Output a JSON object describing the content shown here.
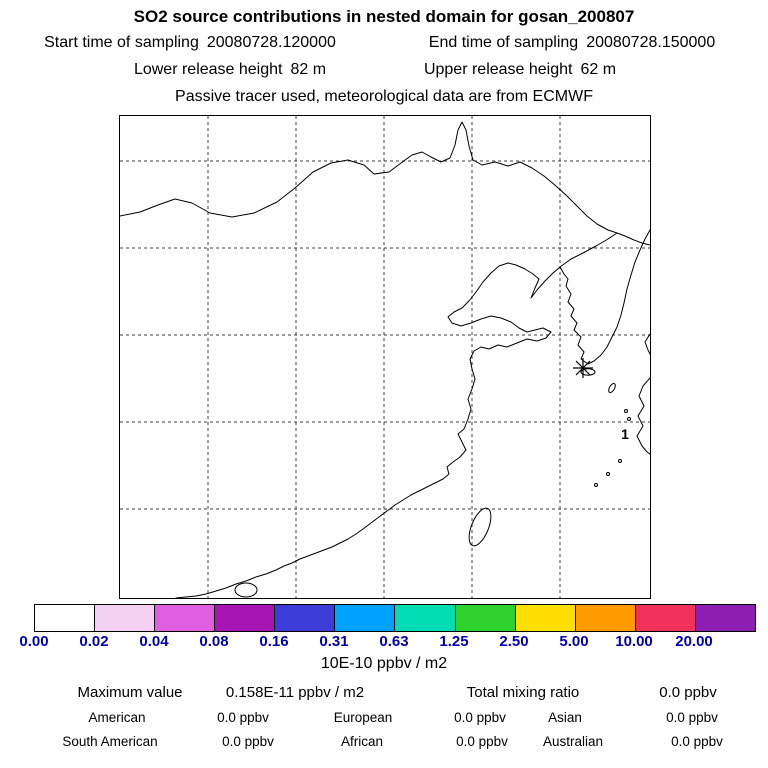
{
  "header": {
    "title": "SO2 source contributions in nested domain for gosan_200807",
    "sampling": {
      "start_label": "Start time of sampling",
      "start_value": "20080728.120000",
      "end_label": "End time of sampling",
      "end_value": "20080728.150000"
    },
    "release": {
      "lower_label": "Lower release height",
      "lower_value": "82 m",
      "upper_label": "Upper release height",
      "upper_value": "62 m"
    },
    "tracer_note": "Passive tracer used, meteorological data are from ECMWF"
  },
  "map": {
    "receptor_label": "1",
    "station_marker": "asterisk"
  },
  "colorbar": {
    "tick_labels": [
      "0.00",
      "0.02",
      "0.04",
      "0.08",
      "0.16",
      "0.31",
      "0.63",
      "1.25",
      "2.50",
      "5.00",
      "10.00",
      "20.00"
    ],
    "colors": [
      "#ffffff",
      "#f4d0f4",
      "#e05fe0",
      "#a614b4",
      "#3c3cd8",
      "#00a2ff",
      "#00dcb4",
      "#30d230",
      "#ffdf00",
      "#ff9900",
      "#f0325a",
      "#8c1eb4"
    ],
    "units_label": "10E-10 ppbv / m2"
  },
  "stats": {
    "maximum_label": "Maximum value",
    "maximum_value": "0.158E-11 ppbv / m2",
    "total_label": "Total mixing ratio",
    "total_value": "0.0 ppbv",
    "regions": [
      {
        "name": "American",
        "value": "0.0 ppbv"
      },
      {
        "name": "European",
        "value": "0.0 ppbv"
      },
      {
        "name": "Asian",
        "value": "0.0 ppbv"
      },
      {
        "name": "South American",
        "value": "0.0 ppbv"
      },
      {
        "name": "African",
        "value": "0.0 ppbv"
      },
      {
        "name": "Australian",
        "value": "0.0 ppbv"
      }
    ]
  },
  "chart_data": {
    "type": "heatmap",
    "title": "SO2 source contributions in nested domain for gosan_200807",
    "subtitle_lines": [
      "Start time of sampling 20080728.120000  End time of sampling 20080728.150000",
      "Lower release height 82 m  Upper release height 62 m",
      "Passive tracer used, meteorological data are from ECMWF"
    ],
    "map_region": "East Asia (China coast, Korean peninsula, Taiwan, Kyushu), grid of dashed lat/lon lines",
    "field_note": "No filled contours visible; all field values fall below the lowest colorbar level",
    "colorbar_levels": [
      0.0,
      0.02,
      0.04,
      0.08,
      0.16,
      0.31,
      0.63,
      1.25,
      2.5,
      5.0,
      10.0,
      20.0
    ],
    "colorbar_units": "10E-10 ppbv / m2",
    "receptor": {
      "marker": "asterisk",
      "label": "1",
      "location_note": "marker near Jeju/Gosan, right-center of map"
    },
    "maximum_value": "0.158E-11 ppbv / m2",
    "total_mixing_ratio_ppbv": 0.0,
    "regional_mixing_ratios_ppbv": {
      "American": 0.0,
      "European": 0.0,
      "Asian": 0.0,
      "South American": 0.0,
      "African": 0.0,
      "Australian": 0.0
    }
  }
}
